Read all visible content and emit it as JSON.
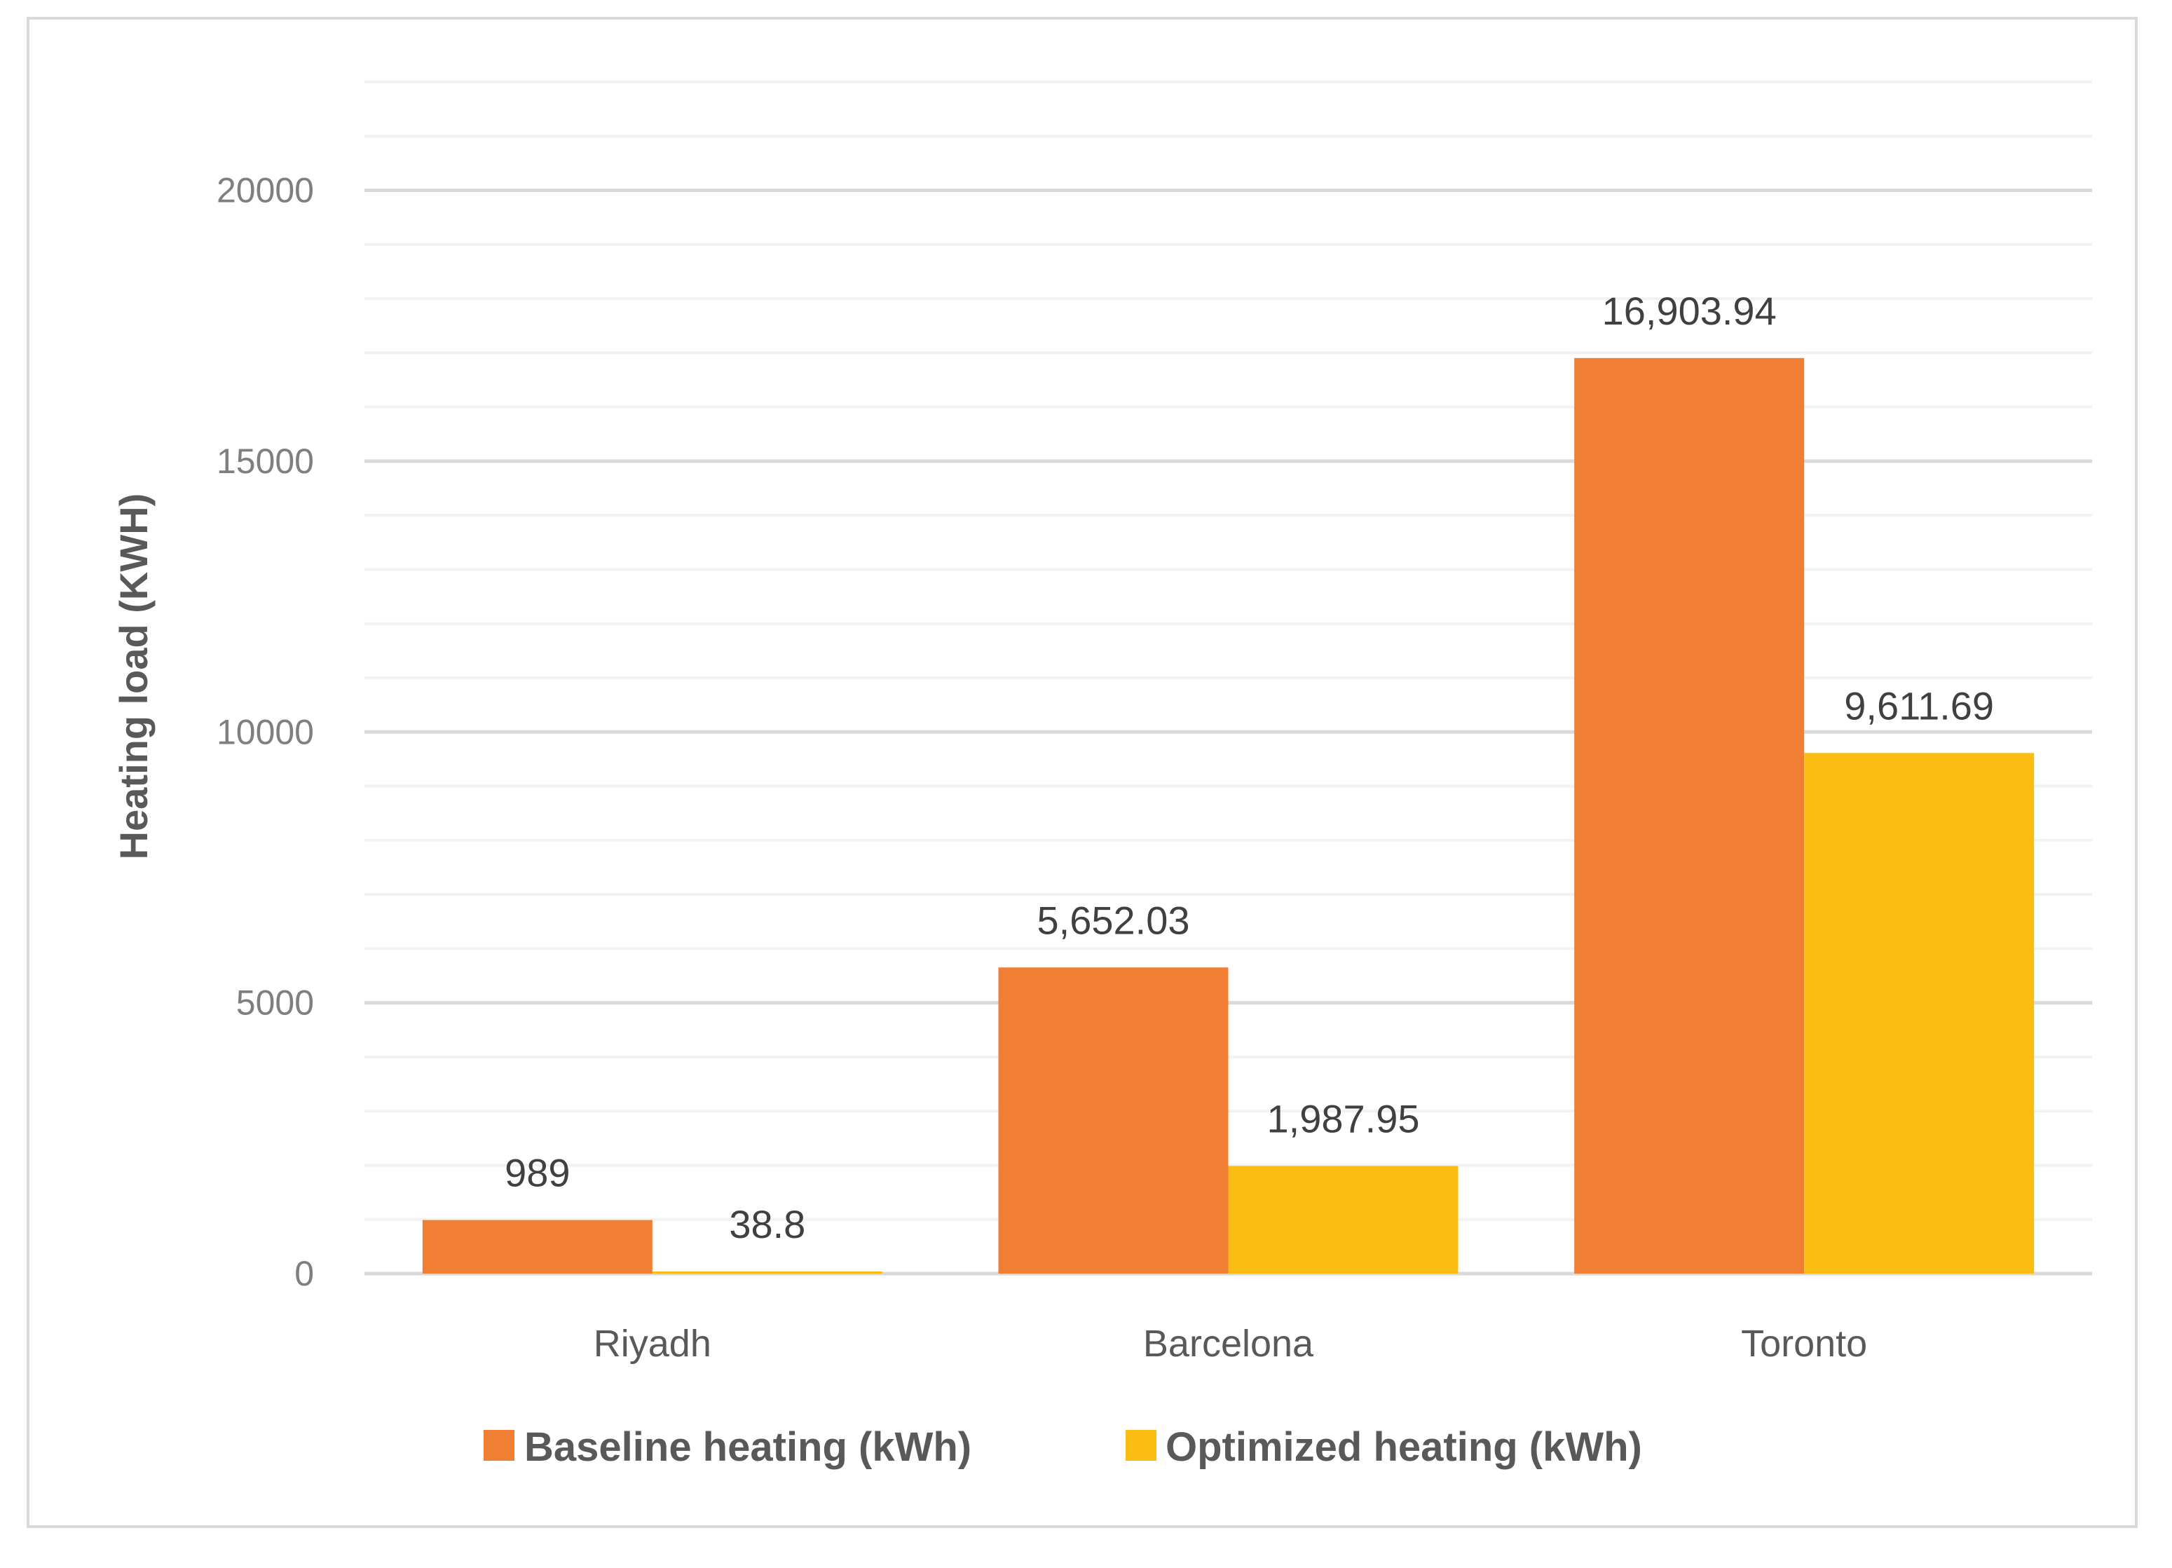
{
  "chart_data": {
    "type": "bar",
    "title": "",
    "xlabel": "",
    "ylabel": "Heating load (KWH)",
    "categories": [
      "Riyadh",
      "Barcelona",
      "Toronto"
    ],
    "series": [
      {
        "name": "Baseline heating (kWh)",
        "color": "#f07f34",
        "values": [
          989,
          5652.03,
          16903.94
        ],
        "value_labels": [
          "989",
          "5,652.03",
          "16,903.94"
        ]
      },
      {
        "name": "Optimized heating (kWh)",
        "color": "#fbbc14",
        "values": [
          38.8,
          1987.95,
          9611.69
        ],
        "value_labels": [
          "38.8",
          "1,987.95",
          "9,611.69"
        ]
      }
    ],
    "ylim": [
      0,
      22000
    ],
    "yticks": [
      0,
      5000,
      10000,
      15000,
      20000
    ],
    "ytick_labels": [
      "0",
      "5000",
      "10000",
      "15000",
      "20000"
    ],
    "minor_gridline_step": 1000,
    "grid": true,
    "legend_position": "bottom"
  }
}
